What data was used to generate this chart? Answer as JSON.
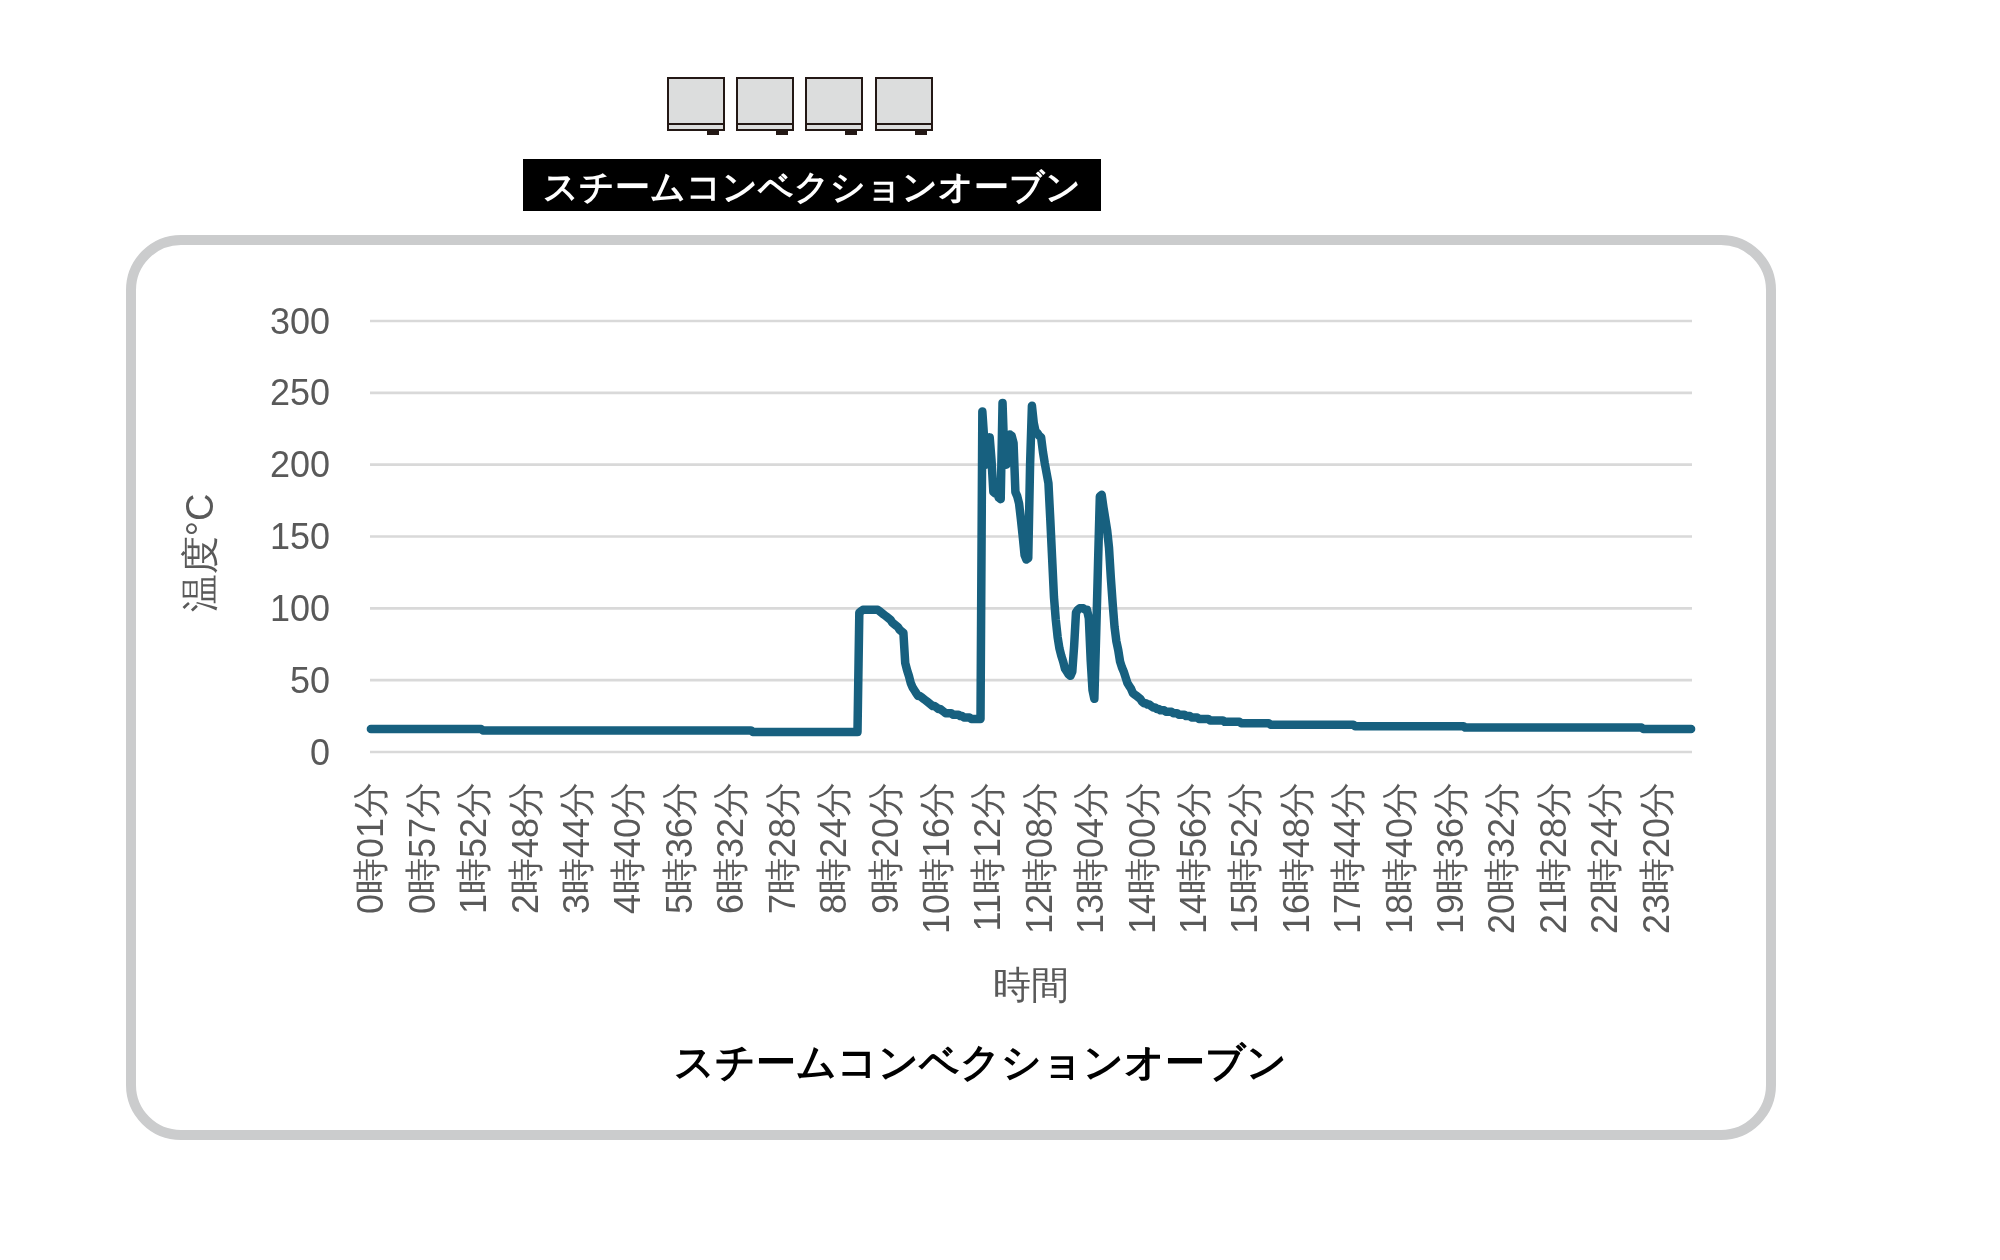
{
  "chart_data": {
    "type": "line",
    "title": "スチームコンベクションオーブン",
    "annotations": [
      "スチームコンベクションオーブン"
    ],
    "xlabel": "時間",
    "ylabel": "温度°C",
    "categories": [
      "0時01分",
      null,
      null,
      null,
      null,
      null,
      null,
      null,
      null,
      null,
      null,
      null,
      null,
      null,
      null,
      null,
      null,
      null,
      null,
      null,
      null,
      null,
      null,
      null,
      null,
      null,
      null,
      null,
      "0時57分",
      null,
      null,
      null,
      null,
      null,
      null,
      null,
      null,
      null,
      null,
      null,
      null,
      null,
      null,
      null,
      null,
      null,
      null,
      null,
      null,
      null,
      null,
      null,
      null,
      null,
      null,
      null,
      "1時52分",
      null,
      null,
      null,
      null,
      null,
      null,
      null,
      null,
      null,
      null,
      null,
      null,
      null,
      null,
      null,
      null,
      null,
      null,
      null,
      null,
      null,
      null,
      null,
      null,
      null,
      null,
      null,
      "2時48分",
      null,
      null,
      null,
      null,
      null,
      null,
      null,
      null,
      null,
      null,
      null,
      null,
      null,
      null,
      null,
      null,
      null,
      null,
      null,
      null,
      null,
      null,
      null,
      null,
      null,
      null,
      null,
      "3時44分",
      null,
      null,
      null,
      null,
      null,
      null,
      null,
      null,
      null,
      null,
      null,
      null,
      null,
      null,
      null,
      null,
      null,
      null,
      null,
      null,
      null,
      null,
      null,
      null,
      null,
      null,
      null,
      "4時40分",
      null,
      null,
      null,
      null,
      null,
      null,
      null,
      null,
      null,
      null,
      null,
      null,
      null,
      null,
      null,
      null,
      null,
      null,
      null,
      null,
      null,
      null,
      null,
      null,
      null,
      null,
      null,
      "5時36分",
      null,
      null,
      null,
      null,
      null,
      null,
      null,
      null,
      null,
      null,
      null,
      null,
      null,
      null,
      null,
      null,
      null,
      null,
      null,
      null,
      null,
      null,
      null,
      null,
      null,
      null,
      null,
      "6時32分",
      null,
      null,
      null,
      null,
      null,
      null,
      null,
      null,
      null,
      null,
      null,
      null,
      null,
      null,
      null,
      null,
      null,
      null,
      null,
      null,
      null,
      null,
      null,
      null,
      null,
      null,
      null,
      "7時28分",
      null,
      null,
      null,
      null,
      null,
      null,
      null,
      null,
      null,
      null,
      null,
      null,
      null,
      null,
      null,
      null,
      null,
      null,
      null,
      null,
      null,
      null,
      null,
      null,
      null,
      null,
      null,
      "8時24分",
      null,
      null,
      null,
      null,
      null,
      null,
      null,
      null,
      null,
      null,
      null,
      null,
      null,
      null,
      null,
      null,
      null,
      null,
      null,
      null,
      null,
      null,
      null,
      null,
      null,
      null,
      null,
      "9時20分",
      null,
      null,
      null,
      null,
      null,
      null,
      null,
      null,
      null,
      null,
      null,
      null,
      null,
      null,
      null,
      null,
      null,
      null,
      null,
      null,
      null,
      null,
      null,
      null,
      null,
      null,
      null,
      "10時16分",
      null,
      null,
      null,
      null,
      null,
      null,
      null,
      null,
      null,
      null,
      null,
      null,
      null,
      null,
      null,
      null,
      null,
      null,
      null,
      null,
      null,
      null,
      null,
      null,
      null,
      null,
      null,
      "11時12分",
      null,
      null,
      null,
      null,
      null,
      null,
      null,
      null,
      null,
      null,
      null,
      null,
      null,
      null,
      null,
      null,
      null,
      null,
      null,
      null,
      null,
      null,
      null,
      null,
      null,
      null,
      null,
      "12時08分",
      null,
      null,
      null,
      null,
      null,
      null,
      null,
      null,
      null,
      null,
      null,
      null,
      null,
      null,
      null,
      null,
      null,
      null,
      null,
      null,
      null,
      null,
      null,
      null,
      null,
      null,
      null,
      "13時04分",
      null,
      null,
      null,
      null,
      null,
      null,
      null,
      null,
      null,
      null,
      null,
      null,
      null,
      null,
      null,
      null,
      null,
      null,
      null,
      null,
      null,
      null,
      null,
      null,
      null,
      null,
      null,
      "14時00分",
      null,
      null,
      null,
      null,
      null,
      null,
      null,
      null,
      null,
      null,
      null,
      null,
      null,
      null,
      null,
      null,
      null,
      null,
      null,
      null,
      null,
      null,
      null,
      null,
      null,
      null,
      null,
      "14時56分",
      null,
      null,
      null,
      null,
      null,
      null,
      null,
      null,
      null,
      null,
      null,
      null,
      null,
      null,
      null,
      null,
      null,
      null,
      null,
      null,
      null,
      null,
      null,
      null,
      null,
      null,
      null,
      "15時52分",
      null,
      null,
      null,
      null,
      null,
      null,
      null,
      null,
      null,
      null,
      null,
      null,
      null,
      null,
      null,
      null,
      null,
      null,
      null,
      null,
      null,
      null,
      null,
      null,
      null,
      null,
      null,
      "16時48分",
      null,
      null,
      null,
      null,
      null,
      null,
      null,
      null,
      null,
      null,
      null,
      null,
      null,
      null,
      null,
      null,
      null,
      null,
      null,
      null,
      null,
      null,
      null,
      null,
      null,
      null,
      null,
      "17時44分",
      null,
      null,
      null,
      null,
      null,
      null,
      null,
      null,
      null,
      null,
      null,
      null,
      null,
      null,
      null,
      null,
      null,
      null,
      null,
      null,
      null,
      null,
      null,
      null,
      null,
      null,
      null,
      "18時40分",
      null,
      null,
      null,
      null,
      null,
      null,
      null,
      null,
      null,
      null,
      null,
      null,
      null,
      null,
      null,
      null,
      null,
      null,
      null,
      null,
      null,
      null,
      null,
      null,
      null,
      null,
      null,
      "19時36分",
      null,
      null,
      null,
      null,
      null,
      null,
      null,
      null,
      null,
      null,
      null,
      null,
      null,
      null,
      null,
      null,
      null,
      null,
      null,
      null,
      null,
      null,
      null,
      null,
      null,
      null,
      null,
      "20時32分",
      null,
      null,
      null,
      null,
      null,
      null,
      null,
      null,
      null,
      null,
      null,
      null,
      null,
      null,
      null,
      null,
      null,
      null,
      null,
      null,
      null,
      null,
      null,
      null,
      null,
      null,
      null,
      "21時28分",
      null,
      null,
      null,
      null,
      null,
      null,
      null,
      null,
      null,
      null,
      null,
      null,
      null,
      null,
      null,
      null,
      null,
      null,
      null,
      null,
      null,
      null,
      null,
      null,
      null,
      null,
      null,
      "22時24分",
      null,
      null,
      null,
      null,
      null,
      null,
      null,
      null,
      null,
      null,
      null,
      null,
      null,
      null,
      null,
      null,
      null,
      null,
      null,
      null,
      null,
      null,
      null,
      null,
      null,
      null,
      null,
      "23時20分",
      null,
      null,
      null,
      null,
      null,
      null,
      null,
      null,
      null,
      null,
      null,
      null,
      null,
      null,
      null,
      null,
      null,
      null,
      null
    ],
    "series": [
      {
        "color": "#17607f",
        "line_style": "solid",
        "values": [
          16,
          16,
          16,
          16,
          16,
          16,
          16,
          16,
          16,
          16,
          16,
          16,
          16,
          16,
          16,
          16,
          16,
          16,
          16,
          16,
          16,
          16,
          16,
          16,
          16,
          16,
          16,
          16,
          16,
          16,
          16,
          16,
          16,
          16,
          16,
          16,
          16,
          16,
          16,
          16,
          16,
          16,
          16,
          16,
          16,
          16,
          16,
          16,
          16,
          16,
          16,
          16,
          16,
          16,
          16,
          16,
          16,
          16,
          16,
          16,
          16,
          15,
          15,
          15,
          15,
          15,
          15,
          15,
          15,
          15,
          15,
          15,
          15,
          15,
          15,
          15,
          15,
          15,
          15,
          15,
          15,
          15,
          15,
          15,
          15,
          15,
          15,
          15,
          15,
          15,
          15,
          15,
          15,
          15,
          15,
          15,
          15,
          15,
          15,
          15,
          15,
          15,
          15,
          15,
          15,
          15,
          15,
          15,
          15,
          15,
          15,
          15,
          15,
          15,
          15,
          15,
          15,
          15,
          15,
          15,
          15,
          15,
          15,
          15,
          15,
          15,
          15,
          15,
          15,
          15,
          15,
          15,
          15,
          15,
          15,
          15,
          15,
          15,
          15,
          15,
          15,
          15,
          15,
          15,
          15,
          15,
          15,
          15,
          15,
          15,
          15,
          15,
          15,
          15,
          15,
          15,
          15,
          15,
          15,
          15,
          15,
          15,
          15,
          15,
          15,
          15,
          15,
          15,
          15,
          15,
          15,
          15,
          15,
          15,
          15,
          15,
          15,
          15,
          15,
          15,
          15,
          15,
          15,
          15,
          15,
          15,
          15,
          15,
          15,
          15,
          15,
          15,
          15,
          15,
          15,
          15,
          15,
          15,
          15,
          15,
          15,
          15,
          15,
          15,
          15,
          15,
          15,
          15,
          14,
          14,
          14,
          14,
          14,
          14,
          14,
          14,
          14,
          14,
          14,
          14,
          14,
          14,
          14,
          14,
          14,
          14,
          14,
          14,
          14,
          14,
          14,
          14,
          14,
          14,
          14,
          14,
          14,
          14,
          14,
          14,
          14,
          14,
          14,
          14,
          14,
          14,
          14,
          14,
          14,
          14,
          14,
          14,
          14,
          14,
          14,
          14,
          14,
          14,
          14,
          14,
          14,
          14,
          14,
          14,
          14,
          14,
          97,
          98,
          99,
          99,
          99,
          99,
          99,
          99,
          99,
          99,
          99,
          98,
          97,
          96,
          95,
          94,
          93,
          92,
          90,
          89,
          88,
          87,
          85,
          84,
          83,
          62,
          57,
          53,
          48,
          45,
          43,
          41,
          39,
          39,
          38,
          37,
          36,
          35,
          34,
          33,
          32,
          32,
          31,
          30,
          30,
          29,
          28,
          27,
          27,
          27,
          27,
          26,
          26,
          26,
          26,
          25,
          25,
          24,
          24,
          24,
          24,
          23,
          23,
          23,
          23,
          23,
          23,
          237,
          218,
          200,
          203,
          219,
          203,
          181,
          180,
          180,
          177,
          176,
          243,
          205,
          200,
          218,
          221,
          220,
          215,
          181,
          178,
          173,
          162,
          150,
          137,
          134,
          135,
          200,
          241,
          229,
          223,
          222,
          220,
          219,
          209,
          201,
          194,
          187,
          162,
          135,
          108,
          92,
          80,
          72,
          67,
          63,
          58,
          56,
          54,
          53,
          56,
          74,
          97,
          99,
          100,
          100,
          100,
          99,
          99,
          93,
          64,
          43,
          37,
          82,
          131,
          178,
          179,
          170,
          162,
          154,
          142,
          121,
          103,
          87,
          77,
          71,
          63,
          59,
          56,
          52,
          48,
          46,
          44,
          41,
          40,
          39,
          38,
          37,
          35,
          34,
          34,
          33,
          33,
          32,
          31,
          31,
          30,
          30,
          29,
          29,
          29,
          28,
          28,
          28,
          28,
          27,
          27,
          27,
          26,
          26,
          26,
          26,
          25,
          25,
          25,
          24,
          24,
          24,
          24,
          23,
          23,
          23,
          23,
          23,
          23,
          22,
          22,
          22,
          22,
          22,
          22,
          22,
          22,
          21,
          21,
          21,
          21,
          21,
          21,
          21,
          21,
          21,
          20,
          20,
          20,
          20,
          20,
          20,
          20,
          20,
          20,
          20,
          20,
          20,
          20,
          20,
          20,
          20,
          19,
          19,
          19,
          19,
          19,
          19,
          19,
          19,
          19,
          19,
          19,
          19,
          19,
          19,
          19,
          19,
          19,
          19,
          19,
          19,
          19,
          19,
          19,
          19,
          19,
          19,
          19,
          19,
          19,
          19,
          19,
          19,
          19,
          19,
          19,
          19,
          19,
          19,
          19,
          19,
          19,
          19,
          19,
          19,
          19,
          19,
          18,
          18,
          18,
          18,
          18,
          18,
          18,
          18,
          18,
          18,
          18,
          18,
          18,
          18,
          18,
          18,
          18,
          18,
          18,
          18,
          18,
          18,
          18,
          18,
          18,
          18,
          18,
          18,
          18,
          18,
          18,
          18,
          18,
          18,
          18,
          18,
          18,
          18,
          18,
          18,
          18,
          18,
          18,
          18,
          18,
          18,
          18,
          18,
          18,
          18,
          18,
          18,
          18,
          18,
          18,
          18,
          18,
          18,
          18,
          18,
          17,
          17,
          17,
          17,
          17,
          17,
          17,
          17,
          17,
          17,
          17,
          17,
          17,
          17,
          17,
          17,
          17,
          17,
          17,
          17,
          17,
          17,
          17,
          17,
          17,
          17,
          17,
          17,
          17,
          17,
          17,
          17,
          17,
          17,
          17,
          17,
          17,
          17,
          17,
          17,
          17,
          17,
          17,
          17,
          17,
          17,
          17,
          17,
          17,
          17,
          17,
          17,
          17,
          17,
          17,
          17,
          17,
          17,
          17,
          17,
          17,
          17,
          17,
          17,
          17,
          17,
          17,
          17,
          17,
          17,
          17,
          17,
          17,
          17,
          17,
          17,
          17,
          17,
          17,
          17,
          17,
          17,
          17,
          17,
          17,
          17,
          17,
          17,
          17,
          17,
          17,
          17,
          17,
          17,
          17,
          17,
          17,
          16,
          16,
          16,
          16,
          16,
          16,
          16,
          16,
          16,
          16,
          16,
          16,
          16,
          16,
          16,
          16,
          16,
          16,
          16,
          16,
          16,
          16,
          16,
          16,
          16,
          16,
          16
        ]
      }
    ],
    "ylim": [
      0,
      300
    ],
    "yticks": [
      0,
      50,
      100,
      150,
      200,
      250,
      300
    ],
    "grid": "y"
  }
}
